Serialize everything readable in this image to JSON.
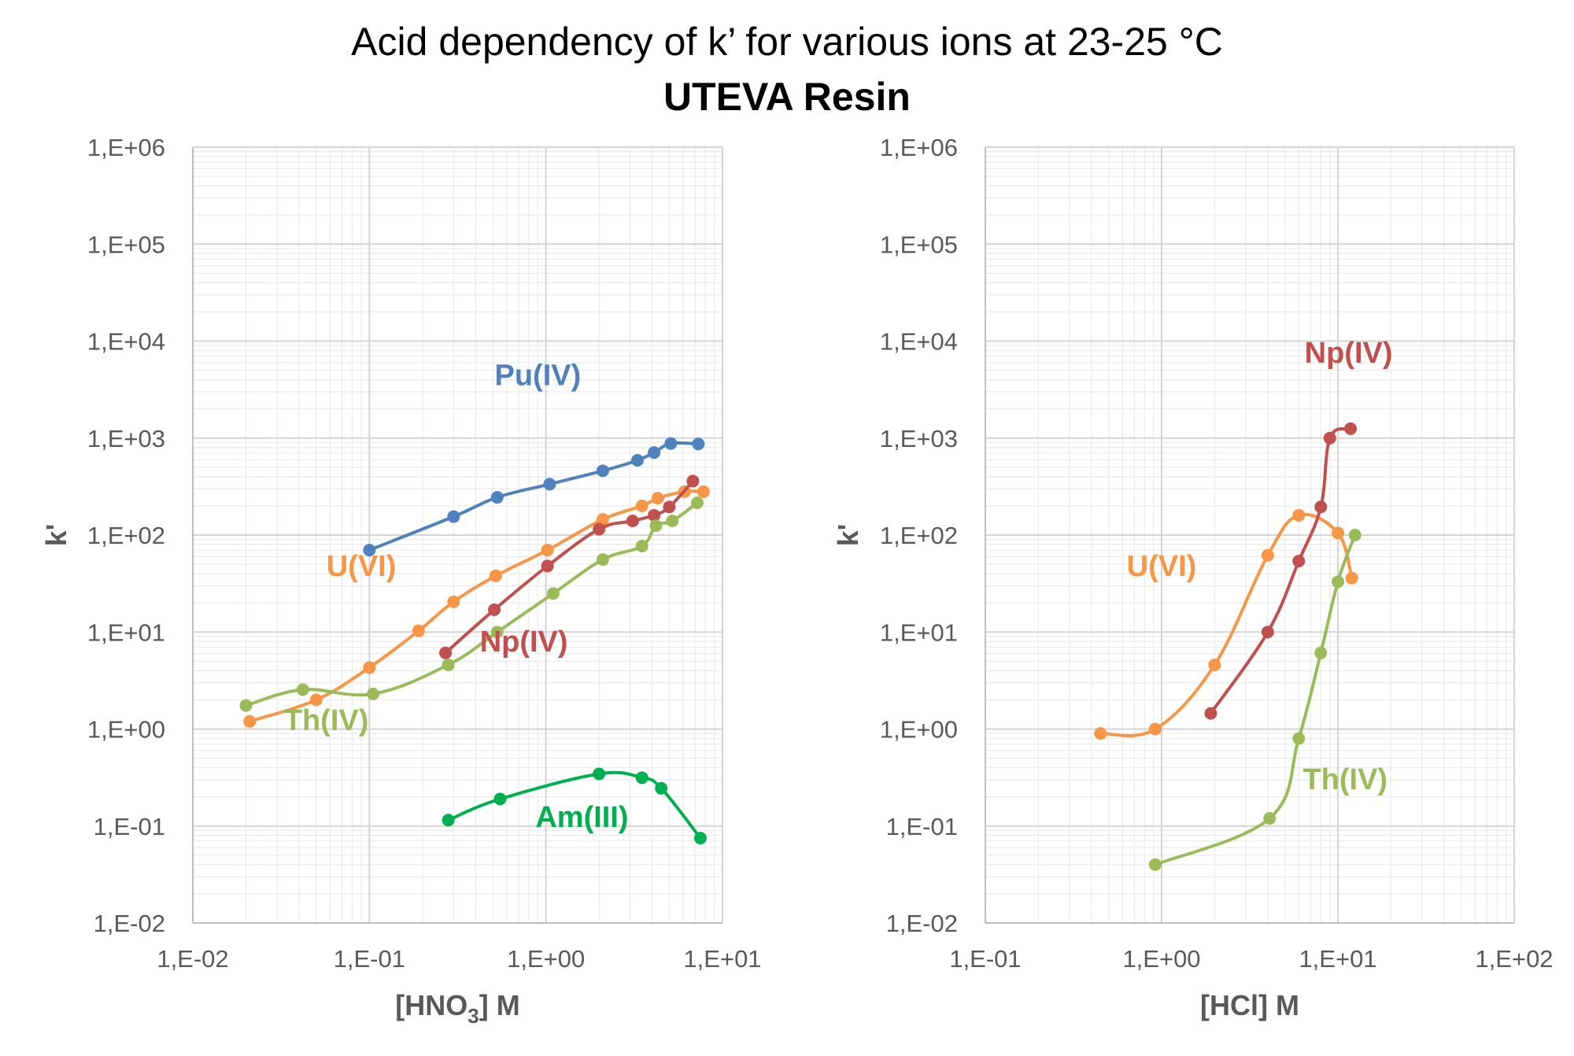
{
  "title": "Acid dependency of k’ for various ions at 23-25 °C",
  "subtitle": "UTEVA Resin",
  "colors": {
    "Pu(IV)": "#4f81bd",
    "U(VI)": "#f79646",
    "Np(IV)": "#c0504d",
    "Th(IV)": "#9bbb59",
    "Am(III)": "#00b050"
  },
  "chart_data": [
    {
      "type": "line",
      "scale": "log-log",
      "xlabel": {
        "main": "[HNO",
        "sub": "3",
        "tail": "] M"
      },
      "ylabel": "k'",
      "xlim": [
        0.01,
        10
      ],
      "ylim": [
        0.01,
        1000000
      ],
      "xticks": [
        "1,E-02",
        "1,E-01",
        "1,E+00",
        "1,E+01"
      ],
      "yticks": [
        "1,E-02",
        "1,E-01",
        "1,E+00",
        "1,E+01",
        "1,E+02",
        "1,E+03",
        "1,E+04",
        "1,E+05",
        "1,E+06"
      ],
      "grid": true,
      "series": [
        {
          "name": "Pu(IV)",
          "label_pos": [
            0.9,
            0.85
          ],
          "x": [
            0.1,
            0.3,
            0.53,
            1.05,
            2.1,
            3.3,
            4.1,
            5.1,
            7.3
          ],
          "y": [
            70,
            155,
            245,
            335,
            460,
            590,
            710,
            880,
            870
          ]
        },
        {
          "name": "U(VI)",
          "label_pos": [
            0.018,
            1.2
          ],
          "x": [
            0.021,
            0.05,
            0.1,
            0.19,
            0.3,
            0.52,
            1.02,
            2.1,
            3.5,
            4.3,
            6.1,
            7.8
          ],
          "y": [
            1.2,
            2.0,
            4.3,
            10.3,
            20.5,
            38,
            70,
            145,
            200,
            240,
            280,
            280
          ]
        },
        {
          "name": "Np(IV)",
          "label_pos": [
            0.5,
            0.5
          ],
          "x": [
            0.27,
            0.51,
            1.02,
            2.0,
            3.1,
            4.1,
            5.0,
            6.8
          ],
          "y": [
            6.1,
            17,
            48,
            115,
            140,
            160,
            195,
            360
          ]
        },
        {
          "name": "Th(IV)",
          "label_pos": [
            0.057,
            0.9
          ],
          "x": [
            0.02,
            0.042,
            0.105,
            0.28,
            0.53,
            1.1,
            2.1,
            3.5,
            4.2,
            5.2,
            7.2
          ],
          "y": [
            1.75,
            2.55,
            2.3,
            4.6,
            10,
            25,
            56,
            77,
            125,
            140,
            215
          ]
        },
        {
          "name": "Am(III)",
          "label_pos": [
            0.1,
            0.9
          ],
          "x": [
            0.28,
            0.55,
            2.0,
            3.5,
            4.5,
            7.5
          ],
          "y": [
            0.115,
            0.19,
            0.345,
            0.315,
            0.245,
            0.075
          ]
        }
      ],
      "labels": [
        {
          "text": "Pu(IV)",
          "series": "Pu(IV)",
          "x": 0.9,
          "y": 3500
        },
        {
          "text": "U(VI)",
          "series": "U(VI)",
          "x": 0.09,
          "y": 38
        },
        {
          "text": "Np(IV)",
          "series": "Np(IV)",
          "x": 0.75,
          "y": 6.3
        },
        {
          "text": "Th(IV)",
          "series": "Th(IV)",
          "x": 0.057,
          "y": 0.97
        },
        {
          "text": "Am(III)",
          "series": "Am(III)",
          "x": 1.6,
          "y": 0.098
        }
      ]
    },
    {
      "type": "line",
      "scale": "log-log",
      "xlabel": {
        "main": "[HCl] M",
        "sub": "",
        "tail": ""
      },
      "ylabel": "k'",
      "xlim": [
        0.1,
        100
      ],
      "ylim": [
        0.01,
        1000000
      ],
      "xticks": [
        "1,E-01",
        "1,E+00",
        "1,E+01",
        "1,E+02"
      ],
      "yticks": [
        "1,E-02",
        "1,E-01",
        "1,E+00",
        "1,E+01",
        "1,E+02",
        "1,E+03",
        "1,E+04",
        "1,E+05",
        "1,E+06"
      ],
      "grid": true,
      "series": [
        {
          "name": "U(VI)",
          "x": [
            0.45,
            0.92,
            2.0,
            4.0,
            6.0,
            10.0,
            12.0
          ],
          "y": [
            0.9,
            1.0,
            4.6,
            62,
            160,
            105,
            36
          ]
        },
        {
          "name": "Np(IV)",
          "x": [
            1.9,
            4.0,
            6.0,
            8.0,
            9.0,
            11.8
          ],
          "y": [
            1.45,
            10,
            54,
            195,
            1000,
            1250
          ]
        },
        {
          "name": "Th(IV)",
          "x": [
            0.92,
            4.1,
            6.0,
            8.0,
            10.0,
            12.5
          ],
          "y": [
            0.04,
            0.12,
            0.8,
            6.1,
            33,
            100
          ]
        }
      ],
      "labels": [
        {
          "text": "Np(IV)",
          "series": "Np(IV)",
          "x": 11.5,
          "y": 6000
        },
        {
          "text": "U(VI)",
          "series": "U(VI)",
          "x": 1.0,
          "y": 38
        },
        {
          "text": "Th(IV)",
          "series": "Th(IV)",
          "x": 11.0,
          "y": 0.24
        }
      ]
    }
  ]
}
